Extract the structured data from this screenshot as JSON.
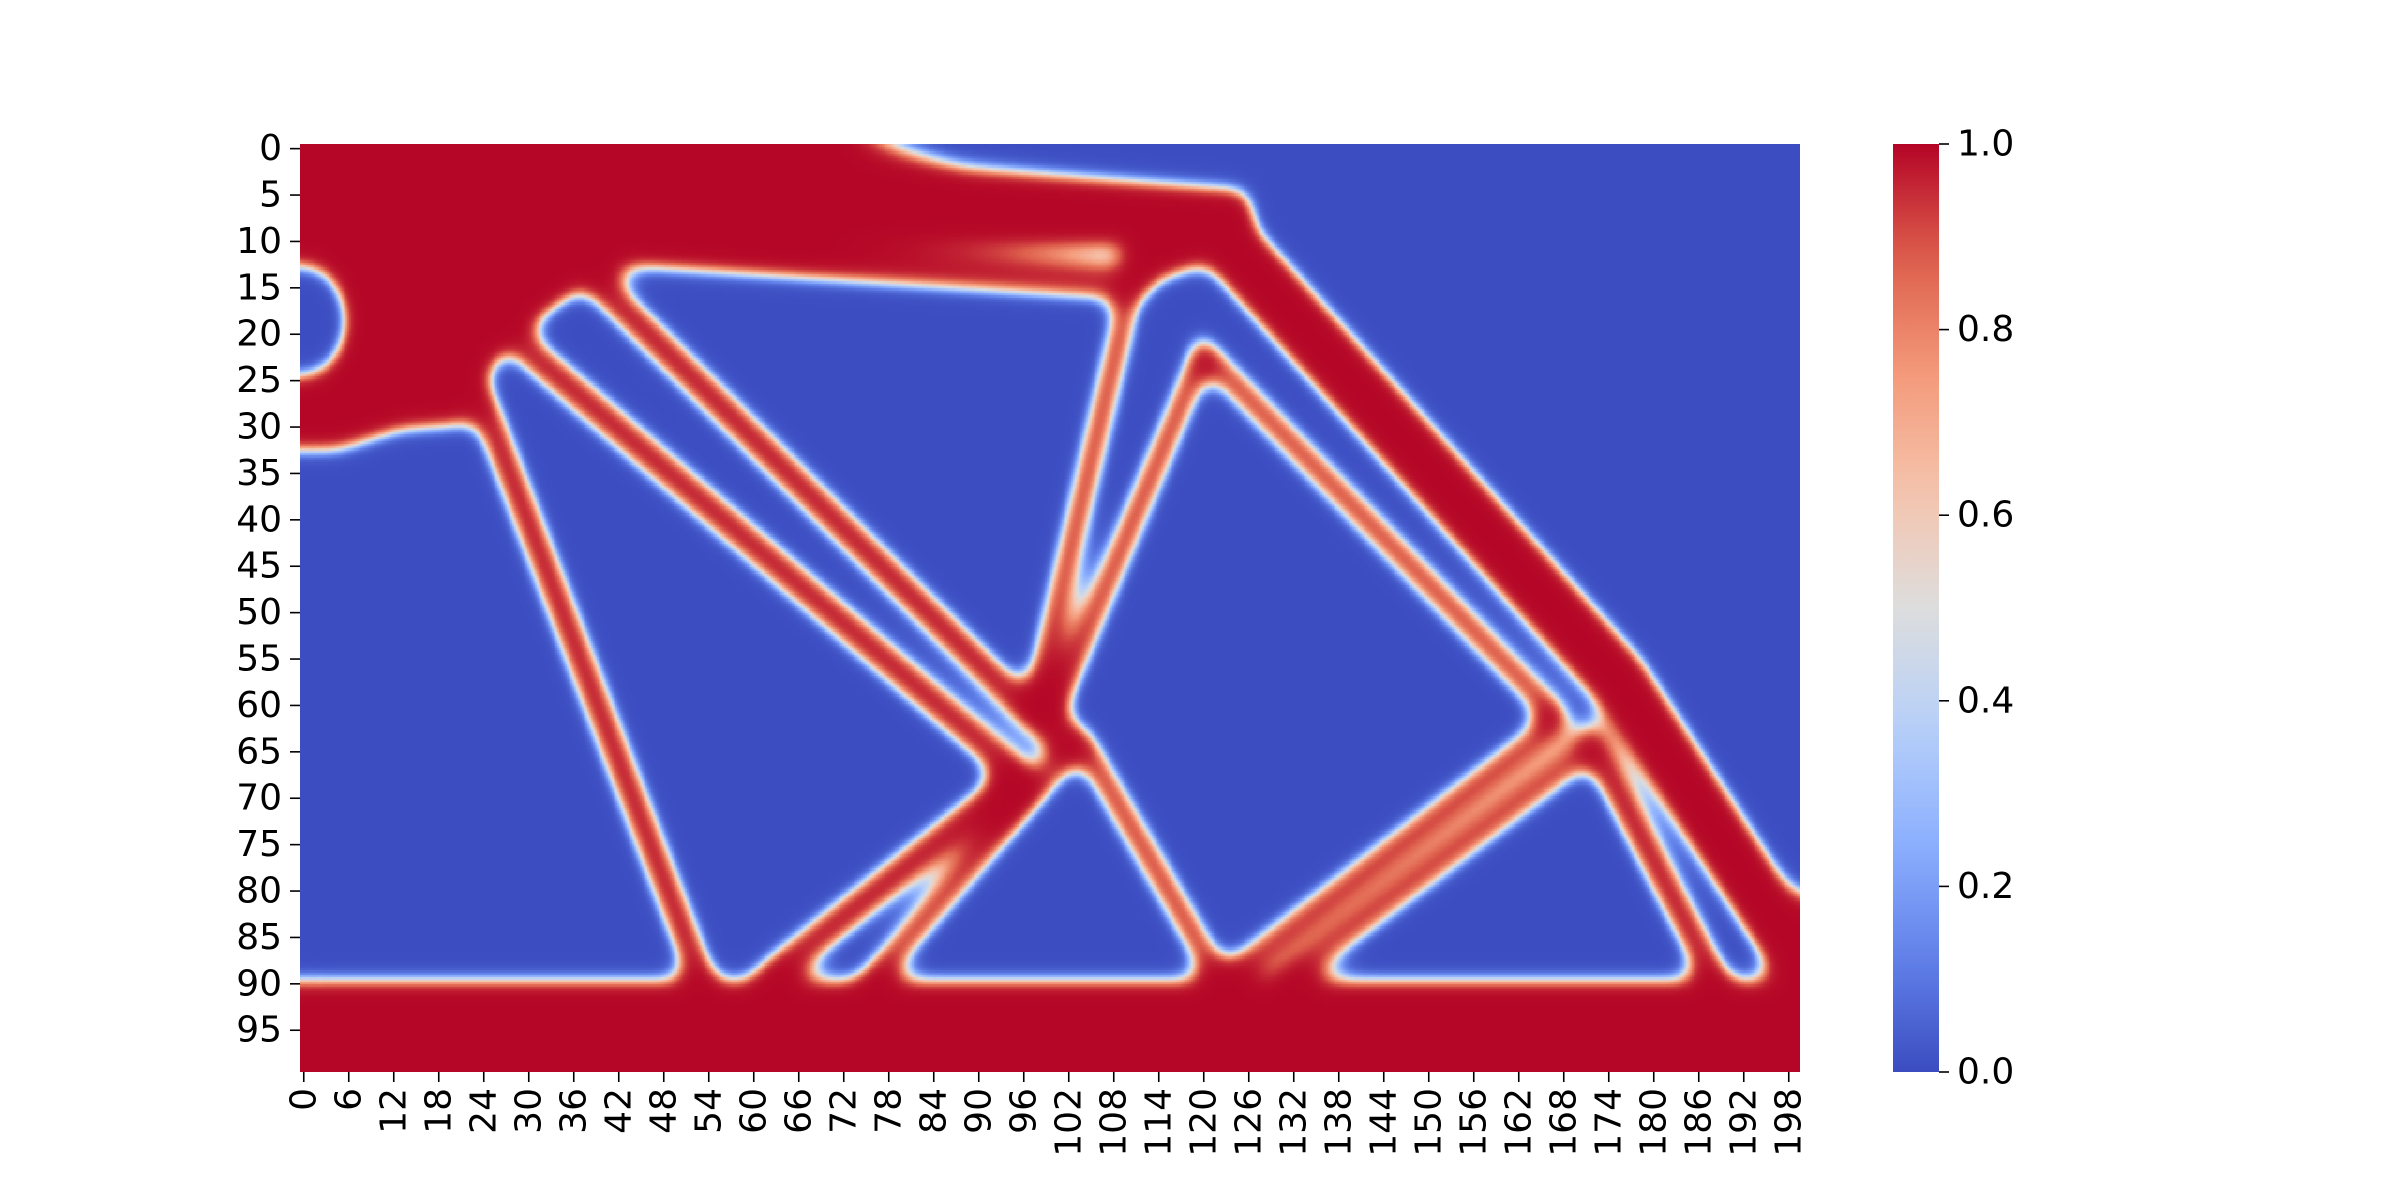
{
  "chart_data": {
    "type": "heatmap",
    "title": "",
    "xlabel": "",
    "ylabel": "",
    "grid_rows": 100,
    "grid_cols": 200,
    "x_ticks": [
      "0",
      "6",
      "12",
      "18",
      "24",
      "30",
      "36",
      "42",
      "48",
      "54",
      "60",
      "66",
      "72",
      "78",
      "84",
      "90",
      "96",
      "102",
      "108",
      "114",
      "120",
      "126",
      "132",
      "138",
      "144",
      "150",
      "156",
      "162",
      "168",
      "174",
      "180",
      "186",
      "192",
      "198"
    ],
    "y_ticks": [
      "0",
      "5",
      "10",
      "15",
      "20",
      "25",
      "30",
      "35",
      "40",
      "45",
      "50",
      "55",
      "60",
      "65",
      "70",
      "75",
      "80",
      "85",
      "90",
      "95"
    ],
    "colorbar": {
      "min": 0.0,
      "max": 1.0,
      "colormap": "coolwarm",
      "ticks": [
        "0.0",
        "0.2",
        "0.4",
        "0.6",
        "0.8",
        "1.0"
      ]
    },
    "colors": {
      "low": "#3b4cc0",
      "mid": "#dddddd",
      "high": "#b40426"
    },
    "description_note": "",
    "structure": {
      "solid_regions": [
        {
          "shape": "polygon",
          "points": [
            [
              0,
              0
            ],
            [
              72,
              0
            ],
            [
              125,
              8
            ],
            [
              112,
              11
            ],
            [
              60,
              11
            ],
            [
              40,
              14
            ],
            [
              30,
              20
            ],
            [
              20,
              29
            ],
            [
              5,
              33
            ],
            [
              0,
              33
            ]
          ]
        },
        {
          "shape": "rect",
          "x0": 0,
          "y0": 90,
          "x1": 200,
          "y1": 100
        }
      ],
      "members": [
        {
          "from": [
            5,
            0
          ],
          "to": [
            60,
            2
          ],
          "width": 3.5
        },
        {
          "from": [
            60,
            3
          ],
          "to": [
            125,
            7
          ],
          "width": 4.5
        },
        {
          "from": [
            36,
            11
          ],
          "to": [
            112,
            15
          ],
          "width": 3.5
        },
        {
          "from": [
            112,
            13
          ],
          "to": [
            123,
            10
          ],
          "width": 4.5
        },
        {
          "from": [
            123,
            10
          ],
          "to": [
            176,
            58
          ],
          "width": 7.5
        },
        {
          "from": [
            176,
            58
          ],
          "to": [
            200,
            88
          ],
          "width": 7.5
        },
        {
          "from": [
            36,
            12
          ],
          "to": [
            98,
            62
          ],
          "width": 3.5
        },
        {
          "from": [
            24,
            27
          ],
          "to": [
            54,
            91
          ],
          "width": 3.5
        },
        {
          "from": [
            30,
            22
          ],
          "to": [
            96,
            68
          ],
          "width": 3.5
        },
        {
          "from": [
            96,
            68
          ],
          "to": [
            62,
            90
          ],
          "width": 3.5
        },
        {
          "from": [
            110,
            18
          ],
          "to": [
            98,
            60
          ],
          "width": 3.0
        },
        {
          "from": [
            98,
            62
          ],
          "to": [
            104,
            65
          ],
          "width": 3.5
        },
        {
          "from": [
            100,
            62
          ],
          "to": [
            120,
            23
          ],
          "width": 3.0
        },
        {
          "from": [
            120,
            22
          ],
          "to": [
            168,
            62
          ],
          "width": 3.0
        },
        {
          "from": [
            104,
            64
          ],
          "to": [
            124,
            92
          ],
          "width": 3.0
        },
        {
          "from": [
            104,
            64
          ],
          "to": [
            74,
            92
          ],
          "width": 3.0
        },
        {
          "from": [
            168,
            62
          ],
          "to": [
            120,
            92
          ],
          "width": 3.0
        },
        {
          "from": [
            172,
            65
          ],
          "to": [
            128,
            92
          ],
          "width": 3.0
        },
        {
          "from": [
            172,
            64
          ],
          "to": [
            190,
            92
          ],
          "width": 3.5
        },
        {
          "from": [
            5,
            30
          ],
          "to": [
            22,
            29
          ],
          "width": 2.5
        }
      ],
      "voids": [
        {
          "cx": 0,
          "cy": 19,
          "rx": 6,
          "ry": 6
        }
      ],
      "dots": [
        {
          "cx": 11,
          "cy": 23,
          "r": 2.5
        }
      ]
    }
  }
}
